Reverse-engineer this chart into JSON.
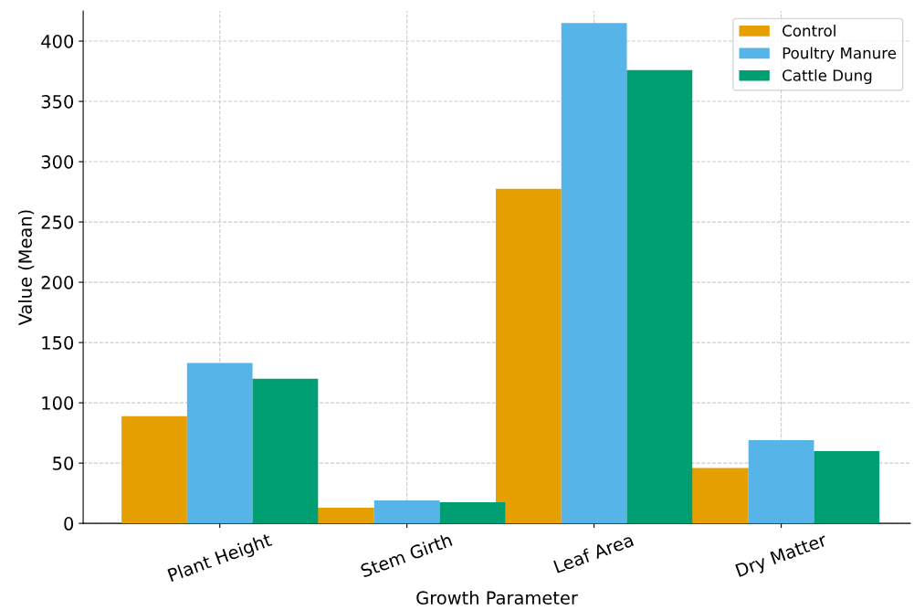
{
  "chart_data": {
    "type": "bar",
    "xlabel": "Growth Parameter",
    "ylabel": "Value (Mean)",
    "categories": [
      "Plant Height",
      "Stem Girth",
      "Leaf Area",
      "Dry Matter"
    ],
    "series": [
      {
        "name": "Control",
        "color": "#e69f00",
        "values": [
          89,
          13,
          277.5,
          46
        ]
      },
      {
        "name": "Poultry Manure",
        "color": "#56b4e9",
        "values": [
          133,
          19,
          415,
          69
        ]
      },
      {
        "name": "Cattle Dung",
        "color": "#009e73",
        "values": [
          120,
          17.5,
          376,
          60
        ]
      }
    ],
    "ylim": [
      0,
      425
    ],
    "yticks": [
      0,
      50,
      100,
      150,
      200,
      250,
      300,
      350,
      400
    ],
    "grid": true,
    "legend": "top right"
  }
}
